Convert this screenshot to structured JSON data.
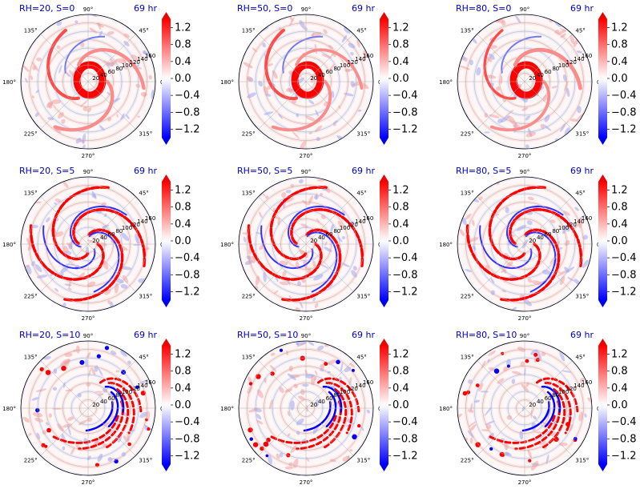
{
  "chart_data": {
    "type": "heatmap",
    "projection": "polar",
    "time_label": "69 hr",
    "angle_ticks": [
      "0°",
      "45°",
      "90°",
      "135°",
      "180°",
      "225°",
      "270°",
      "315°"
    ],
    "radial_ticks": [
      "20",
      "40",
      "60",
      "80",
      "100",
      "120",
      "140",
      "160"
    ],
    "colorbar": {
      "cmap": "bwr",
      "ticks": [
        "1.2",
        "0.8",
        "0.4",
        "0.0",
        "−0.4",
        "−0.8",
        "−1.2"
      ],
      "range": [
        -1.4,
        1.4
      ],
      "extend": "both"
    },
    "panels": [
      {
        "title": "RH=20, S=0",
        "pattern": "ring"
      },
      {
        "title": "RH=50, S=0",
        "pattern": "ring"
      },
      {
        "title": "RH=80, S=0",
        "pattern": "ring"
      },
      {
        "title": "RH=20, S=5",
        "pattern": "spiral"
      },
      {
        "title": "RH=50, S=5",
        "pattern": "spiral"
      },
      {
        "title": "RH=80, S=5",
        "pattern": "spiral"
      },
      {
        "title": "RH=20, S=10",
        "pattern": "sheared"
      },
      {
        "title": "RH=50, S=10",
        "pattern": "sheared"
      },
      {
        "title": "RH=80, S=10",
        "pattern": "sheared"
      }
    ]
  },
  "colors": {
    "positive": "#ff0000",
    "negative": "#0000ff",
    "title": "#0000cc",
    "grid": "#b0b0b0"
  }
}
